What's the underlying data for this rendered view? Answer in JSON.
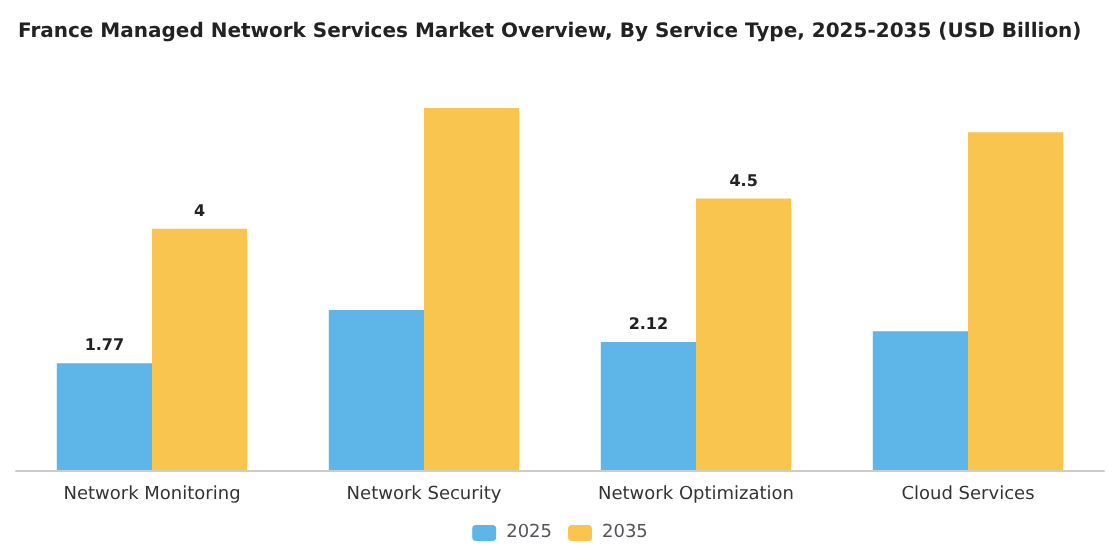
{
  "chart_data": {
    "type": "bar",
    "title": "France Managed Network Services Market Overview, By Service Type, 2025-2035 (USD Billion)",
    "categories": [
      "Network Monitoring",
      "Network Security",
      "Network Optimization",
      "Cloud Services"
    ],
    "series": [
      {
        "name": "2025",
        "color": "#5db5e8",
        "values": [
          1.77,
          2.65,
          2.12,
          2.3
        ],
        "value_labels": [
          "1.77",
          null,
          "2.12",
          null
        ]
      },
      {
        "name": "2035",
        "color": "#f9c54e",
        "values": [
          4,
          6.0,
          4.5,
          5.6
        ],
        "value_labels": [
          "4",
          null,
          "4.5",
          null
        ]
      }
    ],
    "legend": "bottom"
  }
}
